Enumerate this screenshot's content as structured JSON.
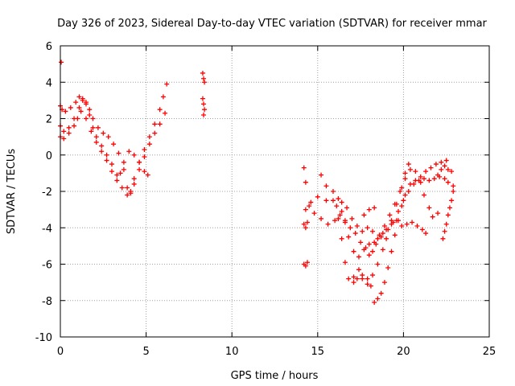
{
  "chart_data": {
    "type": "scatter",
    "title": "Day 326 of 2023, Sidereal Day-to-day VTEC variation (SDTVAR) for receiver mmar",
    "xlabel": "GPS time / hours",
    "ylabel": "SDTVAR / TECUs",
    "xlim": [
      0,
      25
    ],
    "ylim": [
      -10,
      6
    ],
    "xticks": [
      0,
      5,
      10,
      15,
      20,
      25
    ],
    "yticks": [
      -10,
      -8,
      -6,
      -4,
      -2,
      0,
      2,
      4,
      6
    ],
    "grid": true,
    "marker": "+",
    "color": "#ff0000",
    "series": [
      {
        "points": [
          [
            0.05,
            5.1
          ],
          [
            0.0,
            2.7
          ],
          [
            0.1,
            2.5
          ],
          [
            0.3,
            2.4
          ],
          [
            0.6,
            2.6
          ],
          [
            0.9,
            2.9
          ],
          [
            1.1,
            3.2
          ],
          [
            1.3,
            3.1
          ],
          [
            1.5,
            2.8
          ],
          [
            1.7,
            2.2
          ],
          [
            1.9,
            1.5
          ],
          [
            2.1,
            1.0
          ],
          [
            2.4,
            0.5
          ],
          [
            2.7,
            0.0
          ],
          [
            3.0,
            -0.5
          ],
          [
            3.3,
            -1.1
          ],
          [
            3.6,
            -1.8
          ],
          [
            3.9,
            -2.2
          ],
          [
            4.1,
            -2.0
          ],
          [
            4.3,
            -1.3
          ],
          [
            4.6,
            -0.4
          ],
          [
            4.9,
            0.3
          ],
          [
            5.2,
            1.0
          ],
          [
            5.5,
            1.7
          ],
          [
            5.8,
            2.5
          ],
          [
            6.0,
            3.2
          ],
          [
            6.2,
            3.9
          ],
          [
            0.0,
            1.6
          ],
          [
            0.2,
            1.3
          ],
          [
            0.5,
            1.5
          ],
          [
            0.8,
            2.0
          ],
          [
            1.1,
            2.6
          ],
          [
            1.3,
            3.0
          ],
          [
            1.5,
            2.9
          ],
          [
            1.7,
            2.5
          ],
          [
            1.9,
            2.0
          ],
          [
            2.2,
            1.5
          ],
          [
            2.5,
            1.2
          ],
          [
            2.8,
            1.0
          ],
          [
            3.1,
            0.6
          ],
          [
            3.4,
            0.1
          ],
          [
            3.7,
            -0.8
          ],
          [
            3.9,
            -1.8
          ],
          [
            4.1,
            -2.1
          ],
          [
            4.3,
            -1.6
          ],
          [
            4.6,
            -0.8
          ],
          [
            4.9,
            -0.1
          ],
          [
            5.2,
            0.6
          ],
          [
            5.5,
            1.2
          ],
          [
            5.8,
            1.7
          ],
          [
            6.1,
            2.3
          ],
          [
            0.0,
            1.0
          ],
          [
            0.2,
            0.9
          ],
          [
            0.5,
            1.2
          ],
          [
            0.8,
            1.6
          ],
          [
            1.0,
            2.0
          ],
          [
            1.2,
            2.4
          ],
          [
            1.5,
            2.0
          ],
          [
            1.8,
            1.3
          ],
          [
            2.1,
            0.7
          ],
          [
            2.4,
            0.2
          ],
          [
            2.7,
            -0.3
          ],
          [
            3.0,
            -0.9
          ],
          [
            3.3,
            -1.4
          ],
          [
            3.5,
            -1.0
          ],
          [
            3.7,
            -0.4
          ],
          [
            4.0,
            0.2
          ],
          [
            4.3,
            0.0
          ],
          [
            4.6,
            -0.4
          ],
          [
            4.9,
            -0.9
          ],
          [
            5.1,
            -1.1
          ],
          [
            8.3,
            4.5
          ],
          [
            8.35,
            4.2
          ],
          [
            8.4,
            4.0
          ],
          [
            8.3,
            3.1
          ],
          [
            8.35,
            2.8
          ],
          [
            8.4,
            2.5
          ],
          [
            8.35,
            2.2
          ],
          [
            14.2,
            -0.7
          ],
          [
            14.3,
            -1.5
          ],
          [
            14.3,
            -3.0
          ],
          [
            14.5,
            -2.8
          ],
          [
            14.2,
            -3.8
          ],
          [
            14.3,
            -4.0
          ],
          [
            14.4,
            -3.7
          ],
          [
            14.2,
            -6.0
          ],
          [
            14.3,
            -6.1
          ],
          [
            14.4,
            -5.9
          ],
          [
            14.6,
            -2.6
          ],
          [
            15.0,
            -2.3
          ],
          [
            15.5,
            -2.5
          ],
          [
            15.9,
            -2.0
          ],
          [
            16.2,
            -2.4
          ],
          [
            16.4,
            -3.1
          ],
          [
            16.6,
            -3.7
          ],
          [
            16.8,
            -4.5
          ],
          [
            17.1,
            -5.3
          ],
          [
            17.4,
            -5.6
          ],
          [
            17.7,
            -5.2
          ],
          [
            18.0,
            -4.9
          ],
          [
            18.3,
            -4.8
          ],
          [
            18.6,
            -4.4
          ],
          [
            18.9,
            -3.9
          ],
          [
            19.2,
            -3.3
          ],
          [
            19.5,
            -2.7
          ],
          [
            19.8,
            -2.0
          ],
          [
            20.1,
            -1.3
          ],
          [
            20.4,
            -0.8
          ],
          [
            20.7,
            -0.9
          ],
          [
            21.0,
            -1.5
          ],
          [
            21.2,
            -2.2
          ],
          [
            21.5,
            -2.9
          ],
          [
            21.7,
            -3.4
          ],
          [
            22.0,
            -3.2
          ],
          [
            15.2,
            -1.1
          ],
          [
            15.5,
            -1.7
          ],
          [
            15.9,
            -2.5
          ],
          [
            16.2,
            -3.5
          ],
          [
            16.4,
            -4.6
          ],
          [
            16.6,
            -5.9
          ],
          [
            16.8,
            -6.8
          ],
          [
            17.1,
            -6.7
          ],
          [
            17.4,
            -6.3
          ],
          [
            17.6,
            -6.8
          ],
          [
            17.9,
            -7.1
          ],
          [
            18.2,
            -6.6
          ],
          [
            18.5,
            -6.0
          ],
          [
            18.8,
            -5.2
          ],
          [
            19.0,
            -4.6
          ],
          [
            19.3,
            -3.6
          ],
          [
            19.6,
            -2.7
          ],
          [
            19.9,
            -1.8
          ],
          [
            20.1,
            -1.0
          ],
          [
            20.3,
            -0.5
          ],
          [
            14.8,
            -3.2
          ],
          [
            15.2,
            -3.5
          ],
          [
            15.6,
            -3.8
          ],
          [
            16.0,
            -3.6
          ],
          [
            16.3,
            -3.3
          ],
          [
            16.6,
            -3.6
          ],
          [
            16.9,
            -4.0
          ],
          [
            17.2,
            -4.3
          ],
          [
            17.5,
            -4.8
          ],
          [
            17.8,
            -5.1
          ],
          [
            18.0,
            -5.5
          ],
          [
            18.2,
            -5.3
          ],
          [
            18.4,
            -4.9
          ],
          [
            18.7,
            -4.5
          ],
          [
            19.0,
            -4.1
          ],
          [
            19.3,
            -3.8
          ],
          [
            19.6,
            -3.6
          ],
          [
            19.9,
            -3.9
          ],
          [
            20.2,
            -3.8
          ],
          [
            20.5,
            -3.7
          ],
          [
            20.8,
            -3.9
          ],
          [
            21.1,
            -4.1
          ],
          [
            21.3,
            -4.3
          ],
          [
            16.1,
            -2.8
          ],
          [
            16.4,
            -2.6
          ],
          [
            16.7,
            -2.9
          ],
          [
            17.0,
            -3.5
          ],
          [
            17.3,
            -3.9
          ],
          [
            17.6,
            -4.2
          ],
          [
            17.9,
            -4.0
          ],
          [
            18.2,
            -4.2
          ],
          [
            18.5,
            -4.6
          ],
          [
            18.8,
            -4.3
          ],
          [
            19.1,
            -4.1
          ],
          [
            19.4,
            -3.7
          ],
          [
            19.7,
            -3.1
          ],
          [
            20.0,
            -2.5
          ],
          [
            20.3,
            -2.0
          ],
          [
            20.6,
            -1.6
          ],
          [
            20.9,
            -1.4
          ],
          [
            21.2,
            -1.3
          ],
          [
            21.5,
            -1.4
          ],
          [
            21.8,
            -1.3
          ],
          [
            22.1,
            -1.2
          ],
          [
            22.4,
            -1.3
          ],
          [
            22.6,
            -1.5
          ],
          [
            18.3,
            -8.1
          ],
          [
            18.5,
            -7.9
          ],
          [
            18.7,
            -7.6
          ],
          [
            18.9,
            -7.0
          ],
          [
            19.1,
            -6.2
          ],
          [
            19.3,
            -5.3
          ],
          [
            19.5,
            -4.4
          ],
          [
            19.7,
            -3.6
          ],
          [
            19.9,
            -2.8
          ],
          [
            20.1,
            -2.2
          ],
          [
            20.4,
            -1.6
          ],
          [
            20.7,
            -1.4
          ],
          [
            21.0,
            -1.2
          ],
          [
            21.3,
            -0.9
          ],
          [
            21.6,
            -0.7
          ],
          [
            21.9,
            -0.5
          ],
          [
            22.2,
            -0.4
          ],
          [
            22.5,
            -0.3
          ],
          [
            22.8,
            -0.9
          ],
          [
            22.9,
            -1.7
          ],
          [
            17.1,
            -7.0
          ],
          [
            17.3,
            -6.8
          ],
          [
            17.6,
            -6.6
          ],
          [
            17.9,
            -6.8
          ],
          [
            18.1,
            -7.2
          ],
          [
            22.0,
            -1.1
          ],
          [
            22.2,
            -0.8
          ],
          [
            22.4,
            -0.6
          ],
          [
            22.6,
            -0.8
          ],
          [
            22.3,
            -4.6
          ],
          [
            22.4,
            -4.2
          ],
          [
            22.5,
            -3.8
          ],
          [
            22.6,
            -3.3
          ],
          [
            22.7,
            -2.9
          ],
          [
            22.8,
            -2.5
          ],
          [
            22.9,
            -2.0
          ],
          [
            17.7,
            -3.3
          ],
          [
            18.0,
            -3.0
          ],
          [
            18.3,
            -2.9
          ]
        ]
      }
    ]
  }
}
